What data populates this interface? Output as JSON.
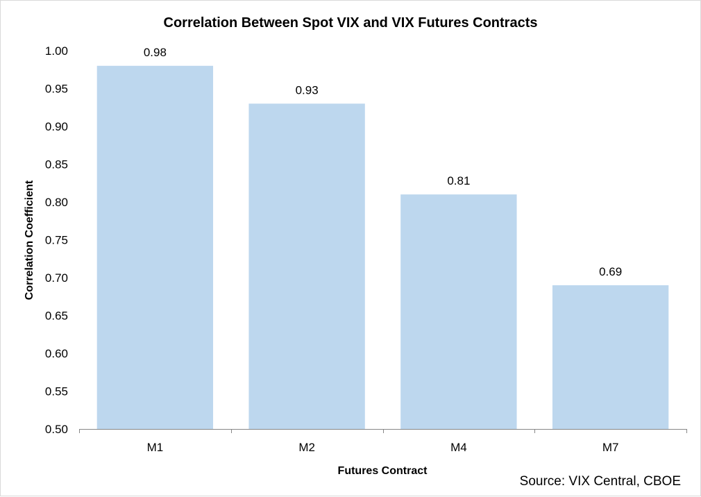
{
  "chart_data": {
    "type": "bar",
    "title": "Correlation Between Spot VIX and VIX Futures Contracts",
    "xlabel": "Futures Contract",
    "ylabel": "Correlation Coefficient",
    "categories": [
      "M1",
      "M2",
      "M4",
      "M7"
    ],
    "values": [
      0.98,
      0.93,
      0.81,
      0.69
    ],
    "ylim": [
      0.5,
      1.0
    ],
    "yticks": [
      "0.50",
      "0.55",
      "0.60",
      "0.65",
      "0.70",
      "0.75",
      "0.80",
      "0.85",
      "0.90",
      "0.95",
      "1.00"
    ],
    "data_labels": [
      "0.98",
      "0.93",
      "0.81",
      "0.69"
    ],
    "grid": false,
    "legend": "none",
    "bar_color": "#bdd7ee",
    "source": "Source: VIX Central, CBOE"
  }
}
